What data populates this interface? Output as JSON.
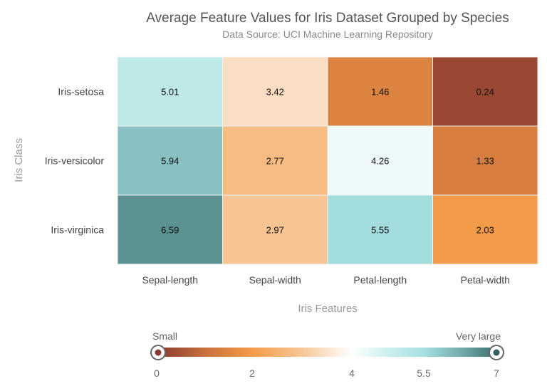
{
  "chart_data": {
    "type": "heatmap",
    "title": "Average Feature Values for Iris Dataset Grouped by Species",
    "subtitle": "Data Source: UCI Machine Learning Repository",
    "xlabel": "Iris Features",
    "ylabel": "Iris Class",
    "x_categories": [
      "Sepal-length",
      "Sepal-width",
      "Petal-length",
      "Petal-width"
    ],
    "y_categories": [
      "Iris-setosa",
      "Iris-versicolor",
      "Iris-virginica"
    ],
    "values": [
      [
        5.01,
        3.42,
        1.46,
        0.24
      ],
      [
        5.94,
        2.77,
        4.26,
        1.33
      ],
      [
        6.59,
        2.97,
        5.55,
        2.03
      ]
    ],
    "color_scale": {
      "domain": [
        0,
        2,
        4,
        5.5,
        7
      ],
      "stops": [
        {
          "value": 0,
          "color": "#8a3b30"
        },
        {
          "value": 1,
          "color": "#c7703c"
        },
        {
          "value": 2,
          "color": "#f29b48"
        },
        {
          "value": 3,
          "color": "#f7c696"
        },
        {
          "value": 3.5,
          "color": "#fbe3cc"
        },
        {
          "value": 4,
          "color": "#ffffff"
        },
        {
          "value": 4.75,
          "color": "#cdeeee"
        },
        {
          "value": 5.5,
          "color": "#a6dfe0"
        },
        {
          "value": 6.2,
          "color": "#78b0b0"
        },
        {
          "value": 7,
          "color": "#3c7070"
        }
      ]
    },
    "legend": {
      "min_label": "Small",
      "max_label": "Very large",
      "ticks": [
        "0",
        "2",
        "4",
        "5.5",
        "7"
      ],
      "tick_values": [
        0,
        2,
        4,
        5.5,
        7
      ],
      "placement": "bottom",
      "range": [
        0,
        7
      ]
    }
  }
}
